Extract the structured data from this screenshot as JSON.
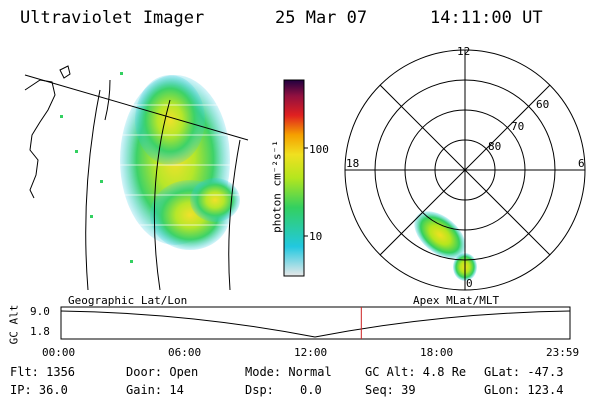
{
  "header": {
    "title": "Ultraviolet Imager",
    "date": "25 Mar 07",
    "time": "14:11:00 UT"
  },
  "geo_panel": {
    "label": "Geographic Lat/Lon"
  },
  "polar_panel": {
    "label": "Apex MLat/MLT",
    "mlt_labels": [
      "12",
      "18",
      "6",
      "0"
    ],
    "mlat_labels": [
      "60",
      "70",
      "80"
    ]
  },
  "colorbar": {
    "axis_label": "photon cm⁻²s⁻¹",
    "ticks": [
      "100",
      "10"
    ]
  },
  "orbit_plot": {
    "ylabel": "GC Alt",
    "yticks": [
      "9.0",
      "1.8"
    ],
    "xticks": [
      "00:00",
      "06:00",
      "12:00",
      "18:00",
      "23:59"
    ],
    "current_time_fraction": 0.59
  },
  "info": {
    "flt": "Flt: 1356",
    "ip": "IP: 36.0",
    "door": "Door: Open",
    "gain": "Gain: 14",
    "mode": "Mode: Normal",
    "dsp_label": "Dsp:",
    "dsp_value": "0.0",
    "gc_alt": "GC Alt: 4.8 Re",
    "seq": "Seq: 39",
    "glat": "GLat: -47.3",
    "glon": "GLon: 123.4"
  },
  "colors": {
    "marker": "#cc2222",
    "colorbar_stops": [
      "#e8e8e8",
      "#22c8e0",
      "#33d060",
      "#b4e61e",
      "#f0e020",
      "#f5a000",
      "#e02020",
      "#901040",
      "#200040"
    ]
  }
}
